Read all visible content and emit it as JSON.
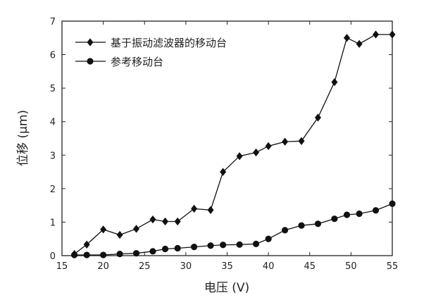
{
  "chart_data": {
    "type": "line",
    "xlabel": "电压 (V)",
    "ylabel": "位移 (μm)",
    "xlim": [
      15,
      55
    ],
    "ylim": [
      0,
      7
    ],
    "xticks": [
      15,
      20,
      25,
      30,
      35,
      40,
      45,
      50,
      55
    ],
    "yticks": [
      0,
      1,
      2,
      3,
      4,
      5,
      6,
      7
    ],
    "grid": false,
    "legend_position": "top-left",
    "series": [
      {
        "name": "基于振动滤波器的移动台",
        "marker": "diamond",
        "x": [
          16.5,
          18,
          20,
          22,
          24,
          26,
          27.5,
          29,
          31,
          33,
          34.5,
          36.5,
          38.5,
          40,
          42,
          44,
          46,
          48,
          49.5,
          51,
          53,
          55
        ],
        "y": [
          0.05,
          0.33,
          0.78,
          0.62,
          0.8,
          1.08,
          1.02,
          1.02,
          1.4,
          1.36,
          2.5,
          2.97,
          3.08,
          3.27,
          3.4,
          3.42,
          4.12,
          5.18,
          6.5,
          6.32,
          6.6,
          6.6
        ]
      },
      {
        "name": "参考移动台",
        "marker": "circle",
        "x": [
          16.5,
          18,
          20,
          22,
          24,
          26,
          27.5,
          29,
          31,
          33,
          34.5,
          36.5,
          38.5,
          40,
          42,
          44,
          46,
          48,
          49.5,
          51,
          53,
          55
        ],
        "y": [
          0.02,
          0.02,
          0.02,
          0.05,
          0.07,
          0.13,
          0.2,
          0.22,
          0.26,
          0.3,
          0.32,
          0.33,
          0.35,
          0.5,
          0.76,
          0.9,
          0.95,
          1.1,
          1.22,
          1.25,
          1.35,
          1.55
        ]
      }
    ]
  }
}
